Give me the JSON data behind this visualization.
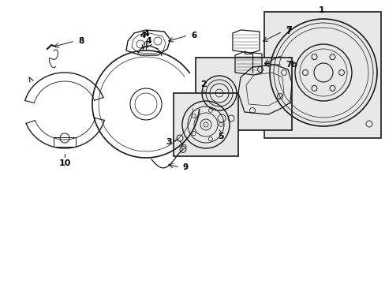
{
  "bg_color": "#ffffff",
  "box_bg": "#e8e8e8",
  "lc": "#1a1a1a",
  "figsize": [
    4.89,
    3.6
  ],
  "dpi": 100
}
